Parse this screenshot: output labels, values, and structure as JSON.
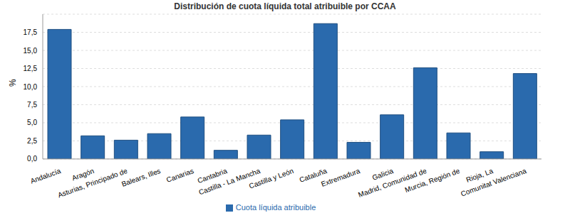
{
  "chart_data": {
    "type": "bar",
    "title": "Distribución de cuota líquida total atribuible por CCAA",
    "y_label": "%",
    "categories": [
      "Andalucía",
      "Aragón",
      "Asturias, Principado de",
      "Balears, Illes",
      "Canarias",
      "Cantabria",
      "Castilla - La Mancha",
      "Castilla y León",
      "Cataluña",
      "Extremadura",
      "Galicia",
      "Madrid, Comunidad de",
      "Murcia, Región de",
      "Rioja, La",
      "Comunitat Valenciana"
    ],
    "series": [
      {
        "name": "Cuota líquida atribuible",
        "color": "#2a6aad",
        "values": [
          17.9,
          3.2,
          2.6,
          3.5,
          5.8,
          1.2,
          3.3,
          5.4,
          18.7,
          2.3,
          6.1,
          12.6,
          3.6,
          1.0,
          11.8
        ]
      }
    ],
    "ylim": [
      0,
      20
    ],
    "yticks": [
      {
        "value": 0,
        "label": "0,0"
      },
      {
        "value": 2.5,
        "label": "2,5"
      },
      {
        "value": 5,
        "label": "5,0"
      },
      {
        "value": 7.5,
        "label": "7,5"
      },
      {
        "value": 10,
        "label": "10,0"
      },
      {
        "value": 12.5,
        "label": "12,5"
      },
      {
        "value": 15,
        "label": "15,0"
      },
      {
        "value": 17.5,
        "label": "17,5"
      }
    ],
    "grid": true,
    "legend": "bottom"
  }
}
